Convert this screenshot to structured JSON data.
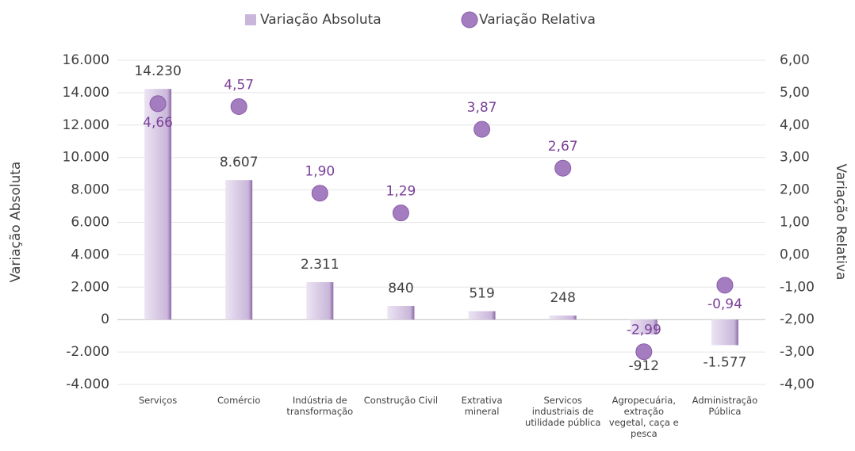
{
  "chart_data": {
    "type": "bar",
    "legend": "top",
    "grid": true,
    "ylabel": "Variação Absoluta",
    "y2label": "Variação Relativa",
    "categories": [
      "Serviços",
      "Comércio",
      "Indústria de transformação",
      "Construção Civil",
      "Extrativa mineral",
      "Servicos industriais de utilidade pública",
      "Agropecuária, extração vegetal, caça e pesca",
      "Administração Pública"
    ],
    "series": [
      {
        "name": "Variação Absoluta",
        "type": "bar",
        "color": "#c9b6da",
        "values": [
          14230,
          8607,
          2311,
          840,
          519,
          248,
          -912,
          -1577
        ],
        "value_labels": [
          "14.230",
          "8.607",
          "2.311",
          "840",
          "519",
          "248",
          "-912",
          "-1.577"
        ]
      },
      {
        "name": "Variação Relativa",
        "type": "scatter",
        "axis": "y2",
        "color": "#a47cc0",
        "values": [
          4.66,
          4.57,
          1.9,
          1.29,
          3.87,
          2.67,
          -2.99,
          -0.94
        ],
        "value_labels": [
          "4,66",
          "4,57",
          "1,90",
          "1,29",
          "3,87",
          "2,67",
          "-2,99",
          "-0,94"
        ]
      }
    ],
    "ylim": [
      -4000,
      16000
    ],
    "yticks": [
      {
        "value": -4000,
        "label": "-4.000"
      },
      {
        "value": -2000,
        "label": "-2.000"
      },
      0,
      {
        "value": 2000,
        "label": "2.000"
      },
      {
        "value": 4000,
        "label": "4.000"
      },
      {
        "value": 6000,
        "label": "6.000"
      },
      {
        "value": 8000,
        "label": "8.000"
      },
      {
        "value": 10000,
        "label": "10.000"
      },
      {
        "value": 12000,
        "label": "12.000"
      },
      {
        "value": 14000,
        "label": "14.000"
      },
      {
        "value": 16000,
        "label": "16.000"
      }
    ],
    "y2lim": [
      -4,
      6
    ],
    "y2ticks": [
      {
        "value": -4,
        "label": "-4,00"
      },
      {
        "value": -3,
        "label": "-3,00"
      },
      {
        "value": -2,
        "label": "-2,00"
      },
      {
        "value": -1,
        "label": "-1,00"
      },
      {
        "value": 0,
        "label": "0,00"
      },
      {
        "value": 1,
        "label": "1,00"
      },
      {
        "value": 2,
        "label": "2,00"
      },
      {
        "value": 3,
        "label": "3,00"
      },
      {
        "value": 4,
        "label": "4,00"
      },
      {
        "value": 5,
        "label": "5,00"
      },
      {
        "value": 6,
        "label": "6,00"
      }
    ]
  }
}
